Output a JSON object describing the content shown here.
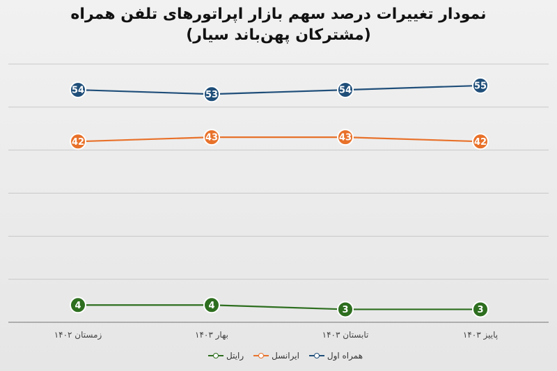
{
  "chart_data": {
    "type": "line",
    "title": "نمودار تغییرات درصد سهم بازار اپراتورهای تلفن همراه",
    "subtitle": "(مشترکان پهن‌باند سیار)",
    "categories": [
      "زمستان ۱۴۰۲",
      "بهار ۱۴۰۳",
      "تابستان ۱۴۰۳",
      "پاییز ۱۴۰۳"
    ],
    "series": [
      {
        "name": "همراه اول",
        "values": [
          54,
          53,
          54,
          55
        ],
        "color": "#1f4e79"
      },
      {
        "name": "ایرانسل",
        "values": [
          42,
          43,
          43,
          42
        ],
        "color": "#e8712a"
      },
      {
        "name": "رایتل",
        "values": [
          4,
          4,
          3,
          3
        ],
        "color": "#2d6e1f"
      }
    ],
    "ylim": [
      0,
      60
    ],
    "grid": true,
    "legend_position": "bottom"
  }
}
